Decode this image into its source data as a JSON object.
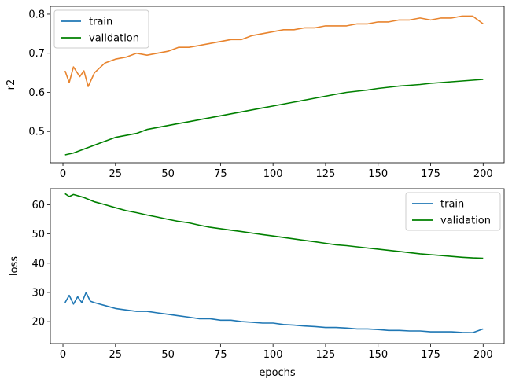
{
  "colors": {
    "train": "#1f77b4",
    "train_r2": "#e8842e",
    "validation": "#008000"
  },
  "chart_data": [
    {
      "type": "line",
      "title": "",
      "xlabel": "",
      "ylabel": "r2",
      "xlim": [
        -6,
        210
      ],
      "ylim": [
        0.42,
        0.82
      ],
      "xticks": [
        0,
        25,
        50,
        75,
        100,
        125,
        150,
        175,
        200
      ],
      "yticks": [
        0.5,
        0.6,
        0.7,
        0.8
      ],
      "ytick_labels": [
        "0.5",
        "0.6",
        "0.7",
        "0.8"
      ],
      "legend": {
        "position": "upper left"
      },
      "legend_entries": [
        {
          "name": "train",
          "color": "#1f77b4"
        },
        {
          "name": "validation",
          "color": "#008000"
        }
      ],
      "series": [
        {
          "name": "train",
          "color": "#e8842e",
          "x": [
            1,
            3,
            5,
            8,
            10,
            12,
            15,
            18,
            20,
            25,
            30,
            35,
            40,
            45,
            50,
            55,
            60,
            65,
            70,
            75,
            80,
            85,
            90,
            95,
            100,
            105,
            110,
            115,
            120,
            125,
            130,
            135,
            140,
            145,
            150,
            155,
            160,
            165,
            170,
            175,
            180,
            185,
            190,
            195,
            200
          ],
          "y": [
            0.655,
            0.625,
            0.665,
            0.64,
            0.655,
            0.615,
            0.65,
            0.665,
            0.675,
            0.685,
            0.69,
            0.7,
            0.695,
            0.7,
            0.705,
            0.715,
            0.715,
            0.72,
            0.725,
            0.73,
            0.735,
            0.735,
            0.745,
            0.75,
            0.755,
            0.76,
            0.76,
            0.765,
            0.765,
            0.77,
            0.77,
            0.77,
            0.775,
            0.775,
            0.78,
            0.78,
            0.785,
            0.785,
            0.79,
            0.785,
            0.79,
            0.79,
            0.795,
            0.795,
            0.775
          ]
        },
        {
          "name": "validation",
          "color": "#008000",
          "x": [
            1,
            5,
            10,
            15,
            20,
            25,
            30,
            35,
            40,
            45,
            50,
            55,
            60,
            65,
            70,
            75,
            80,
            85,
            90,
            95,
            100,
            105,
            110,
            115,
            120,
            125,
            130,
            135,
            140,
            145,
            150,
            155,
            160,
            165,
            170,
            175,
            180,
            185,
            190,
            195,
            200
          ],
          "y": [
            0.44,
            0.445,
            0.455,
            0.465,
            0.475,
            0.485,
            0.49,
            0.495,
            0.505,
            0.51,
            0.515,
            0.52,
            0.525,
            0.53,
            0.535,
            0.54,
            0.545,
            0.55,
            0.555,
            0.56,
            0.565,
            0.57,
            0.575,
            0.58,
            0.585,
            0.59,
            0.595,
            0.6,
            0.603,
            0.606,
            0.61,
            0.613,
            0.616,
            0.618,
            0.62,
            0.623,
            0.625,
            0.627,
            0.629,
            0.631,
            0.633
          ]
        }
      ]
    },
    {
      "type": "line",
      "title": "",
      "xlabel": "epochs",
      "ylabel": "loss",
      "xlim": [
        -6,
        210
      ],
      "ylim": [
        12.5,
        65.5
      ],
      "xticks": [
        0,
        25,
        50,
        75,
        100,
        125,
        150,
        175,
        200
      ],
      "yticks": [
        20,
        30,
        40,
        50,
        60
      ],
      "ytick_labels": [
        "20",
        "30",
        "40",
        "50",
        "60"
      ],
      "legend": {
        "position": "upper right"
      },
      "legend_entries": [
        {
          "name": "train",
          "color": "#1f77b4"
        },
        {
          "name": "validation",
          "color": "#008000"
        }
      ],
      "series": [
        {
          "name": "train",
          "color": "#1f77b4",
          "x": [
            1,
            3,
            5,
            7,
            9,
            11,
            13,
            15,
            20,
            25,
            30,
            35,
            40,
            45,
            50,
            55,
            60,
            65,
            70,
            75,
            80,
            85,
            90,
            95,
            100,
            105,
            110,
            115,
            120,
            125,
            130,
            135,
            140,
            145,
            150,
            155,
            160,
            165,
            170,
            175,
            180,
            185,
            190,
            195,
            200
          ],
          "y": [
            26.5,
            29,
            26,
            28.5,
            26.5,
            30,
            27,
            26.5,
            25.5,
            24.5,
            24,
            23.5,
            23.5,
            23,
            22.5,
            22,
            21.5,
            21,
            21,
            20.5,
            20.5,
            20,
            19.8,
            19.5,
            19.5,
            19,
            18.8,
            18.5,
            18.3,
            18,
            18,
            17.8,
            17.5,
            17.5,
            17.3,
            17,
            17,
            16.8,
            16.8,
            16.5,
            16.5,
            16.5,
            16.3,
            16.2,
            17.5
          ]
        },
        {
          "name": "validation",
          "color": "#008000",
          "x": [
            1,
            3,
            5,
            10,
            15,
            20,
            25,
            30,
            35,
            40,
            45,
            50,
            55,
            60,
            65,
            70,
            75,
            80,
            85,
            90,
            95,
            100,
            105,
            110,
            115,
            120,
            125,
            130,
            135,
            140,
            145,
            150,
            155,
            160,
            165,
            170,
            175,
            180,
            185,
            190,
            195,
            200
          ],
          "y": [
            63.8,
            62.8,
            63.5,
            62.5,
            61,
            60,
            59,
            58,
            57.3,
            56.5,
            55.8,
            55,
            54.3,
            53.8,
            53,
            52.3,
            51.8,
            51.3,
            50.8,
            50.3,
            49.8,
            49.3,
            48.8,
            48.3,
            47.8,
            47.3,
            46.8,
            46.3,
            46,
            45.6,
            45.2,
            44.8,
            44.4,
            44,
            43.6,
            43.2,
            42.9,
            42.6,
            42.3,
            42,
            41.8,
            41.7
          ]
        }
      ]
    }
  ]
}
